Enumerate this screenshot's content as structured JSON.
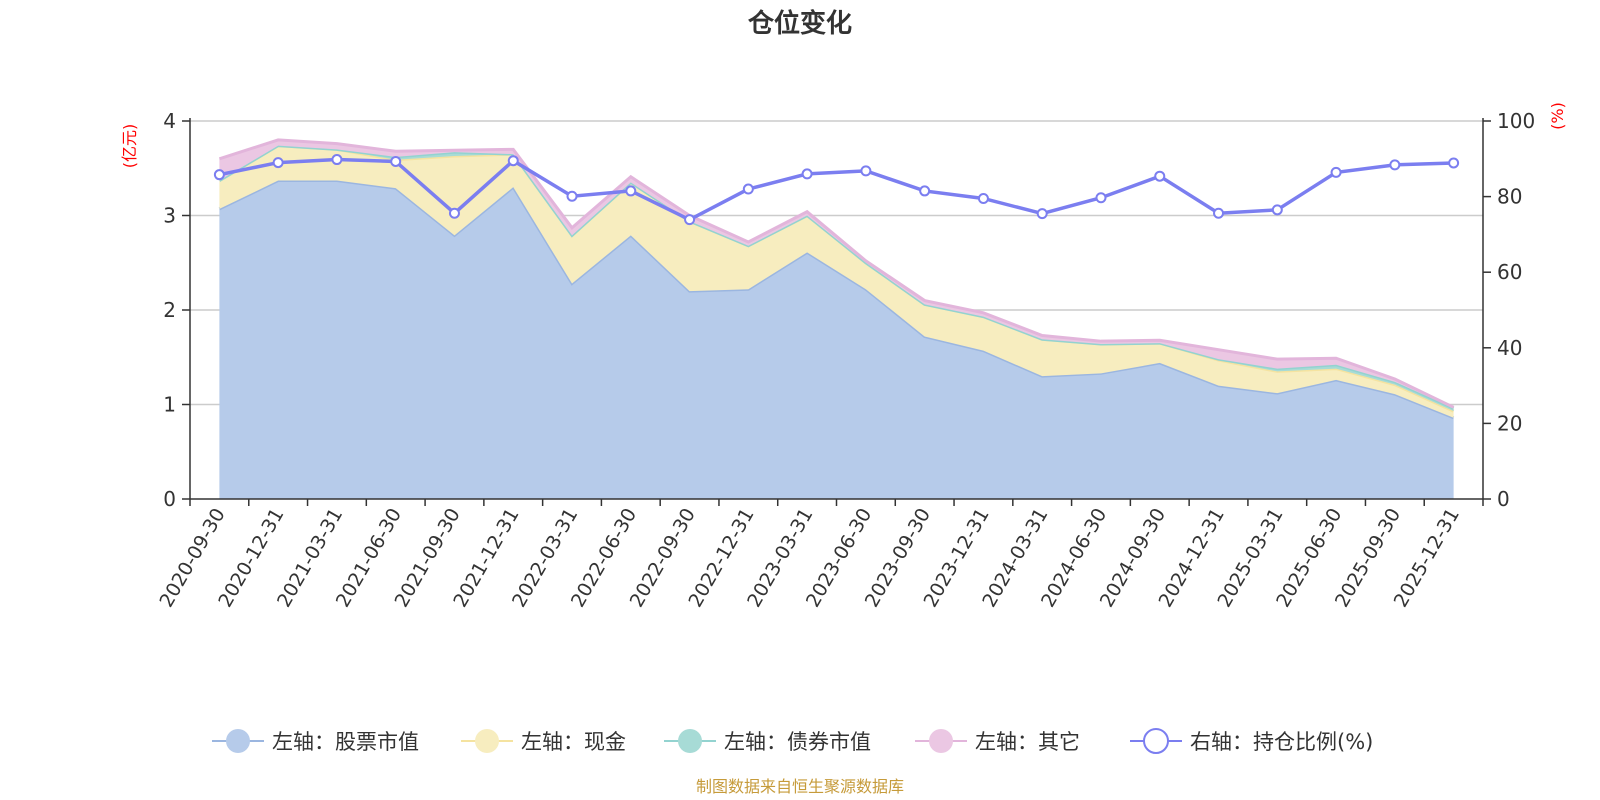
{
  "chart_data": {
    "type": "area",
    "title": "仓位变化",
    "source": "制图数据来自恒生聚源数据库",
    "left_axis": {
      "unit": "(亿元)",
      "ylim": [
        0,
        4
      ],
      "ticks": [
        "0",
        "1",
        "2",
        "3",
        "4"
      ]
    },
    "right_axis": {
      "unit": "(%)",
      "ylim": [
        0,
        100
      ],
      "ticks": [
        "0",
        "20",
        "40",
        "60",
        "80",
        "100"
      ]
    },
    "categories": [
      "2020-09-30",
      "2020-12-31",
      "2021-03-31",
      "2021-06-30",
      "2021-09-30",
      "2021-12-31",
      "2022-03-31",
      "2022-06-30",
      "2022-09-30",
      "2022-12-31",
      "2023-03-31",
      "2023-06-30",
      "2023-09-30",
      "2023-12-31",
      "2024-03-31",
      "2024-06-30",
      "2024-09-30",
      "2024-12-31",
      "2025-03-31",
      "2025-06-30",
      "2025-09-30",
      "2025-12-31"
    ],
    "series": [
      {
        "name": "左轴：股票市值",
        "axis": "left",
        "kind": "stacked-area",
        "color": "#9bb6e0",
        "fill": "#b6cbea",
        "values": [
          3.07,
          3.37,
          3.37,
          3.29,
          2.79,
          3.3,
          2.28,
          2.79,
          2.2,
          2.22,
          2.61,
          2.22,
          1.72,
          1.57,
          1.3,
          1.33,
          1.44,
          1.2,
          1.12,
          1.26,
          1.11,
          0.86
        ]
      },
      {
        "name": "左轴：现金",
        "axis": "left",
        "kind": "stacked-area",
        "color": "#f5e3a0",
        "fill": "#f7edbf",
        "values": [
          0.3,
          0.37,
          0.33,
          0.3,
          0.84,
          0.35,
          0.51,
          0.56,
          0.74,
          0.46,
          0.39,
          0.28,
          0.34,
          0.36,
          0.39,
          0.31,
          0.21,
          0.27,
          0.23,
          0.12,
          0.1,
          0.07
        ]
      },
      {
        "name": "左轴：债券市值",
        "axis": "left",
        "kind": "stacked-area",
        "color": "#93d3d0",
        "fill": "#a7dbd6",
        "values": [
          0,
          0,
          0,
          0.03,
          0.04,
          0,
          0,
          0,
          0,
          0,
          0,
          0,
          0,
          0,
          0,
          0,
          0,
          0.01,
          0.03,
          0.04,
          0.03,
          0.03
        ]
      },
      {
        "name": "左轴：其它",
        "axis": "left",
        "kind": "stacked-area",
        "color": "#e2b5db",
        "fill": "#ebc7e3",
        "values": [
          0.23,
          0.06,
          0.06,
          0.06,
          0.02,
          0.05,
          0.08,
          0.06,
          0.06,
          0.04,
          0.04,
          0.02,
          0.04,
          0.04,
          0.04,
          0.03,
          0.03,
          0.1,
          0.1,
          0.07,
          0.03,
          0.01
        ]
      },
      {
        "name": "右轴：持仓比例(%)",
        "axis": "right",
        "kind": "line",
        "color": "#7b7ef0",
        "values": [
          85.8,
          89.0,
          89.8,
          89.3,
          75.6,
          89.5,
          80.1,
          81.5,
          73.9,
          82.0,
          86.0,
          86.8,
          81.5,
          79.5,
          75.5,
          79.7,
          85.4,
          75.6,
          76.5,
          86.4,
          88.4,
          88.9
        ]
      }
    ]
  }
}
